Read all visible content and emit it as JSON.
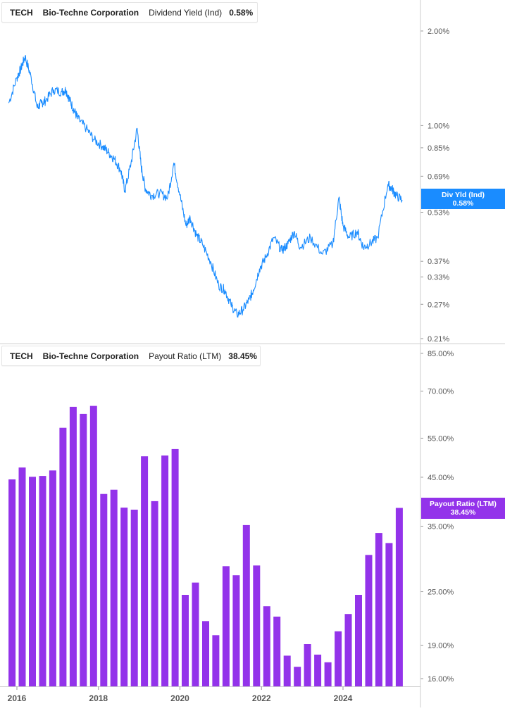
{
  "colors": {
    "line": "#1a8cff",
    "bar": "#9333ea",
    "axis": "#555555",
    "grid_divider": "#cccccc"
  },
  "x_axis": {
    "ticks": [
      "2016",
      "2018",
      "2020",
      "2022",
      "2024"
    ]
  },
  "top_panel": {
    "legend": {
      "ticker": "TECH",
      "company": "Bio-Techne Corporation",
      "metric": "Dividend Yield (Ind)",
      "value": "0.58%"
    },
    "flag": {
      "label": "Div Yld (Ind)",
      "value": "0.58%"
    }
  },
  "bottom_panel": {
    "legend": {
      "ticker": "TECH",
      "company": "Bio-Techne Corporation",
      "metric": "Payout Ratio (LTM)",
      "value": "38.45%"
    },
    "flag": {
      "label": "Payout Ratio (LTM)",
      "value": "38.45%"
    }
  },
  "chart_data": [
    {
      "type": "line",
      "title": "",
      "series": [
        {
          "name": "Dividend Yield (Ind)",
          "x": [
            2015.8,
            2016.0,
            2016.1,
            2016.2,
            2016.35,
            2016.5,
            2016.6,
            2016.7,
            2016.9,
            2017.1,
            2017.2,
            2017.3,
            2017.4,
            2017.5,
            2017.7,
            2017.9,
            2018.1,
            2018.25,
            2018.4,
            2018.55,
            2018.65,
            2018.8,
            2018.95,
            2019.05,
            2019.15,
            2019.3,
            2019.5,
            2019.7,
            2019.85,
            2020.0,
            2020.15,
            2020.25,
            2020.4,
            2020.55,
            2020.75,
            2020.95,
            2021.1,
            2021.25,
            2021.4,
            2021.55,
            2021.7,
            2021.8,
            2021.95,
            2022.1,
            2022.3,
            2022.5,
            2022.65,
            2022.8,
            2022.95,
            2023.2,
            2023.5,
            2023.75,
            2023.9,
            2024.0,
            2024.15,
            2024.35,
            2024.5,
            2024.65,
            2024.85,
            2025.1,
            2025.2,
            2025.3,
            2025.45
          ],
          "values": [
            1.18,
            1.42,
            1.52,
            1.66,
            1.42,
            1.14,
            1.18,
            1.2,
            1.3,
            1.28,
            1.3,
            1.2,
            1.12,
            1.05,
            0.98,
            0.9,
            0.86,
            0.82,
            0.78,
            0.72,
            0.62,
            0.76,
            0.98,
            0.74,
            0.63,
            0.6,
            0.61,
            0.59,
            0.76,
            0.6,
            0.48,
            0.51,
            0.45,
            0.42,
            0.37,
            0.31,
            0.3,
            0.27,
            0.25,
            0.26,
            0.28,
            0.3,
            0.35,
            0.38,
            0.44,
            0.4,
            0.42,
            0.46,
            0.41,
            0.44,
            0.39,
            0.42,
            0.59,
            0.48,
            0.44,
            0.46,
            0.41,
            0.42,
            0.44,
            0.65,
            0.63,
            0.6,
            0.58
          ]
        }
      ],
      "xlim": [
        2015.8,
        2025.6
      ],
      "ylim": [
        0.205,
        2.5
      ],
      "yscale": "log",
      "yticks": [
        2.0,
        1.0,
        0.85,
        0.69,
        0.53,
        0.37,
        0.33,
        0.27,
        0.21
      ],
      "ytick_labels": [
        "2.00%",
        "1.00%",
        "0.85%",
        "0.69%",
        "0.53%",
        "0.37%",
        "0.33%",
        "0.27%",
        "0.21%"
      ],
      "grid": false,
      "legend": "top-left",
      "last_value": 0.58
    },
    {
      "type": "bar",
      "title": "",
      "series": [
        {
          "name": "Payout Ratio (LTM)",
          "x": [
            2015.88,
            2016.13,
            2016.38,
            2016.63,
            2016.88,
            2017.13,
            2017.38,
            2017.63,
            2017.88,
            2018.13,
            2018.38,
            2018.63,
            2018.88,
            2019.13,
            2019.38,
            2019.63,
            2019.88,
            2020.13,
            2020.38,
            2020.63,
            2020.88,
            2021.13,
            2021.38,
            2021.63,
            2021.88,
            2022.13,
            2022.38,
            2022.63,
            2022.88,
            2023.13,
            2023.38,
            2023.63,
            2023.88,
            2024.13,
            2024.38,
            2024.63,
            2024.88,
            2025.13,
            2025.38
          ],
          "values": [
            44.5,
            47.3,
            45.1,
            45.3,
            46.6,
            58.0,
            64.6,
            62.3,
            64.9,
            41.3,
            42.2,
            38.5,
            38.1,
            50.1,
            39.8,
            50.3,
            52.0,
            24.6,
            26.2,
            21.5,
            20.0,
            28.5,
            27.2,
            35.2,
            28.6,
            23.2,
            22.0,
            18.0,
            17.0,
            19.1,
            18.1,
            17.4,
            20.4,
            22.3,
            24.6,
            30.2,
            33.8,
            32.1,
            38.45
          ]
        }
      ],
      "xlim": [
        2015.8,
        2025.6
      ],
      "ylim": [
        15.5,
        86
      ],
      "yscale": "log",
      "yticks": [
        85,
        70,
        55,
        45,
        35,
        25,
        19,
        16
      ],
      "ytick_labels": [
        "85.00%",
        "70.00%",
        "55.00%",
        "45.00%",
        "35.00%",
        "25.00%",
        "19.00%",
        "16.00%"
      ],
      "grid": false,
      "legend": "top-left",
      "last_value": 38.45
    }
  ]
}
